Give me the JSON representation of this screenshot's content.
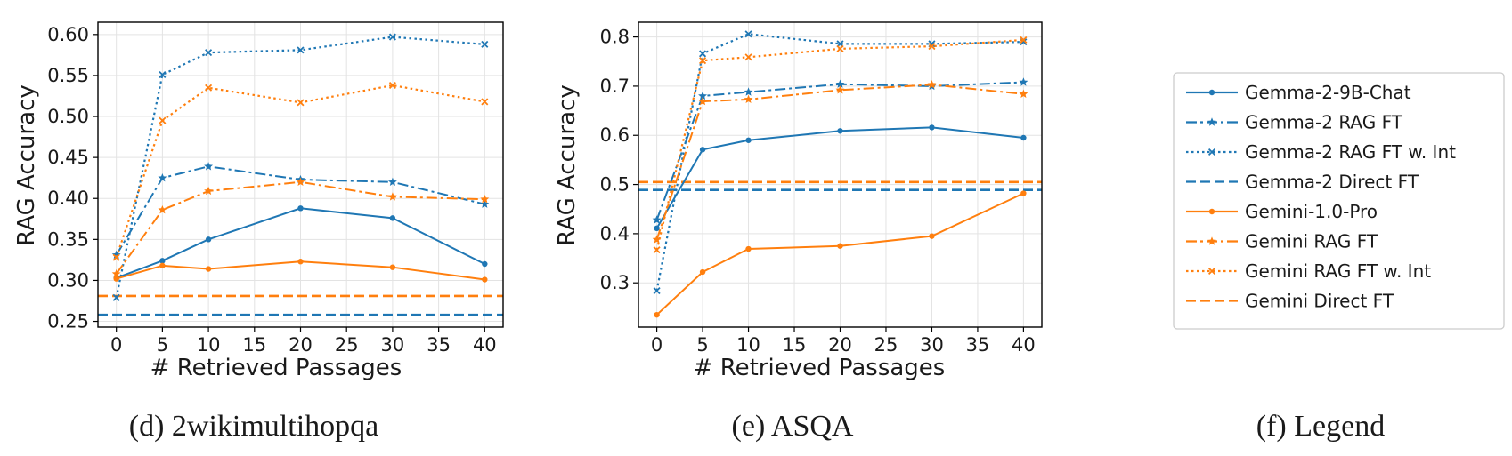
{
  "colors": {
    "blue": "#1f77b4",
    "orange": "#ff7f0e"
  },
  "legend": {
    "caption": "(f) Legend",
    "entries": [
      {
        "label": "Gemma-2-9B-Chat",
        "color": "#1f77b4",
        "style": "solid",
        "marker": "dot"
      },
      {
        "label": "Gemma-2 RAG FT",
        "color": "#1f77b4",
        "style": "dashdot",
        "marker": "star"
      },
      {
        "label": "Gemma-2 RAG FT w. Int",
        "color": "#1f77b4",
        "style": "dotted",
        "marker": "x"
      },
      {
        "label": "Gemma-2 Direct FT",
        "color": "#1f77b4",
        "style": "dashed",
        "marker": "none"
      },
      {
        "label": "Gemini-1.0-Pro",
        "color": "#ff7f0e",
        "style": "solid",
        "marker": "dot"
      },
      {
        "label": "Gemini RAG FT",
        "color": "#ff7f0e",
        "style": "dashdot",
        "marker": "star"
      },
      {
        "label": "Gemini RAG FT w. Int",
        "color": "#ff7f0e",
        "style": "dotted",
        "marker": "x"
      },
      {
        "label": "Gemini Direct FT",
        "color": "#ff7f0e",
        "style": "dashed",
        "marker": "none"
      }
    ]
  },
  "chart_data": [
    {
      "type": "line",
      "caption": "(d) 2wikimultihopqa",
      "xlabel": "# Retrieved Passages",
      "ylabel": "RAG Accuracy",
      "grid": true,
      "xlim": [
        -2,
        42
      ],
      "ylim": [
        0.243,
        0.615
      ],
      "xticks": [
        0,
        5,
        10,
        15,
        20,
        25,
        30,
        35,
        40
      ],
      "xtick_labels": [
        "0",
        "5",
        "10",
        "15",
        "20",
        "25",
        "30",
        "35",
        "40"
      ],
      "yticks": [
        0.25,
        0.3,
        0.35,
        0.4,
        0.45,
        0.5,
        0.55,
        0.6
      ],
      "ytick_labels": [
        "0.25",
        "0.30",
        "0.35",
        "0.40",
        "0.45",
        "0.50",
        "0.55",
        "0.60"
      ],
      "x": [
        0,
        5,
        10,
        20,
        30,
        40
      ],
      "series": [
        {
          "name": "Gemma-2-9B-Chat",
          "color": "#1f77b4",
          "style": "solid",
          "marker": "dot",
          "values": [
            0.303,
            0.324,
            0.35,
            0.388,
            0.376,
            0.32
          ]
        },
        {
          "name": "Gemma-2 RAG FT",
          "color": "#1f77b4",
          "style": "dashdot",
          "marker": "star",
          "values": [
            0.331,
            0.425,
            0.439,
            0.423,
            0.42,
            0.393
          ]
        },
        {
          "name": "Gemma-2 RAG FT w. Int",
          "color": "#1f77b4",
          "style": "dotted",
          "marker": "x",
          "values": [
            0.279,
            0.551,
            0.578,
            0.581,
            0.597,
            0.588
          ]
        },
        {
          "name": "Gemini-1.0-Pro",
          "color": "#ff7f0e",
          "style": "solid",
          "marker": "dot",
          "values": [
            0.302,
            0.318,
            0.314,
            0.323,
            0.316,
            0.301
          ]
        },
        {
          "name": "Gemini RAG FT",
          "color": "#ff7f0e",
          "style": "dashdot",
          "marker": "star",
          "values": [
            0.308,
            0.386,
            0.409,
            0.42,
            0.402,
            0.399
          ]
        },
        {
          "name": "Gemini RAG FT w. Int",
          "color": "#ff7f0e",
          "style": "dotted",
          "marker": "x",
          "values": [
            0.328,
            0.495,
            0.535,
            0.517,
            0.538,
            0.518
          ]
        }
      ],
      "hlines": [
        {
          "name": "Gemma-2 Direct FT",
          "color": "#1f77b4",
          "y": 0.258
        },
        {
          "name": "Gemini Direct FT",
          "color": "#ff7f0e",
          "y": 0.281
        }
      ]
    },
    {
      "type": "line",
      "caption": "(e) ASQA",
      "xlabel": "# Retrieved Passages",
      "ylabel": "RAG Accuracy",
      "grid": true,
      "xlim": [
        -2,
        42
      ],
      "ylim": [
        0.21,
        0.83
      ],
      "xticks": [
        0,
        5,
        10,
        15,
        20,
        25,
        30,
        35,
        40
      ],
      "xtick_labels": [
        "0",
        "5",
        "10",
        "15",
        "20",
        "25",
        "30",
        "35",
        "40"
      ],
      "yticks": [
        0.3,
        0.4,
        0.5,
        0.6,
        0.7,
        0.8
      ],
      "ytick_labels": [
        "0.3",
        "0.4",
        "0.5",
        "0.6",
        "0.7",
        "0.8"
      ],
      "x": [
        0,
        5,
        10,
        20,
        30,
        40
      ],
      "series": [
        {
          "name": "Gemma-2-9B-Chat",
          "color": "#1f77b4",
          "style": "solid",
          "marker": "dot",
          "values": [
            0.411,
            0.571,
            0.59,
            0.609,
            0.616,
            0.595
          ]
        },
        {
          "name": "Gemma-2 RAG FT",
          "color": "#1f77b4",
          "style": "dashdot",
          "marker": "star",
          "values": [
            0.428,
            0.68,
            0.688,
            0.704,
            0.7,
            0.708
          ]
        },
        {
          "name": "Gemma-2 RAG FT w. Int",
          "color": "#1f77b4",
          "style": "dotted",
          "marker": "x",
          "values": [
            0.284,
            0.766,
            0.806,
            0.786,
            0.786,
            0.79
          ]
        },
        {
          "name": "Gemini-1.0-Pro",
          "color": "#ff7f0e",
          "style": "solid",
          "marker": "dot",
          "values": [
            0.235,
            0.322,
            0.369,
            0.375,
            0.395,
            0.482
          ]
        },
        {
          "name": "Gemini RAG FT",
          "color": "#ff7f0e",
          "style": "dashdot",
          "marker": "star",
          "values": [
            0.388,
            0.669,
            0.673,
            0.692,
            0.703,
            0.684
          ]
        },
        {
          "name": "Gemini RAG FT w. Int",
          "color": "#ff7f0e",
          "style": "dotted",
          "marker": "x",
          "values": [
            0.367,
            0.752,
            0.759,
            0.776,
            0.781,
            0.794
          ]
        }
      ],
      "hlines": [
        {
          "name": "Gemma-2 Direct FT",
          "color": "#1f77b4",
          "y": 0.489
        },
        {
          "name": "Gemini Direct FT",
          "color": "#ff7f0e",
          "y": 0.505
        }
      ]
    }
  ]
}
